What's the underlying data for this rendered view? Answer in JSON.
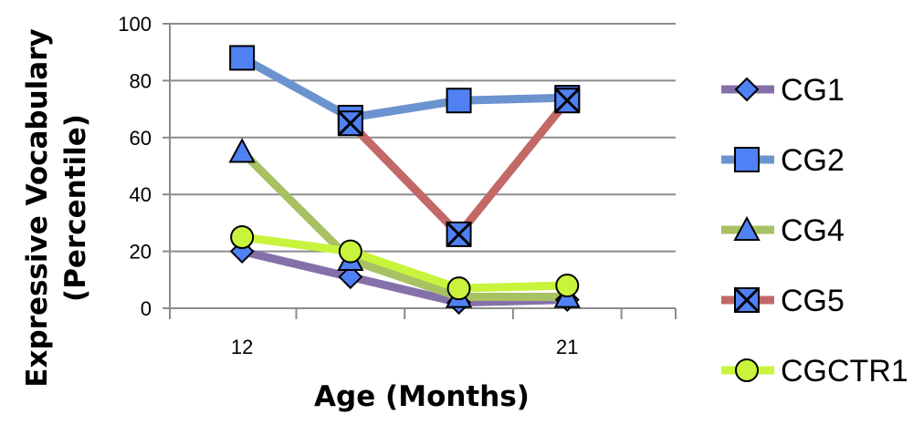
{
  "chart_data": {
    "type": "line",
    "xlabel": "Age (Months)",
    "ylabel_lines": [
      "Expressive Vocabulary",
      "(Percentile)"
    ],
    "x_tick_labels": [
      {
        "x": 12,
        "label": "12"
      },
      {
        "x": 21,
        "label": "21"
      }
    ],
    "y_ticks": [
      0,
      20,
      40,
      60,
      80,
      100
    ],
    "xlim": [
      10,
      24
    ],
    "ylim": [
      0,
      100
    ],
    "grid": "horizontal",
    "legend_position": "right",
    "series": [
      {
        "name": "CG1",
        "color": "#8471aa",
        "marker": "diamond",
        "x": [
          12,
          15,
          18,
          21
        ],
        "values": [
          20,
          11,
          2,
          3
        ]
      },
      {
        "name": "CG2",
        "color": "#6b93cf",
        "marker": "square",
        "x": [
          12,
          15,
          18,
          21
        ],
        "values": [
          88,
          67,
          73,
          74
        ]
      },
      {
        "name": "CG4",
        "color": "#a8c163",
        "marker": "triangle",
        "x": [
          12,
          15,
          18,
          21
        ],
        "values": [
          55,
          17,
          4,
          4
        ]
      },
      {
        "name": "CG5",
        "color": "#c26967",
        "marker": "x",
        "x": [
          15,
          18,
          21
        ],
        "values": [
          65,
          26,
          73
        ]
      },
      {
        "name": "CGCTR1",
        "color": "#c8f43c",
        "marker": "circle",
        "x": [
          12,
          15,
          18,
          21
        ],
        "values": [
          25,
          20,
          7,
          8
        ]
      }
    ]
  }
}
